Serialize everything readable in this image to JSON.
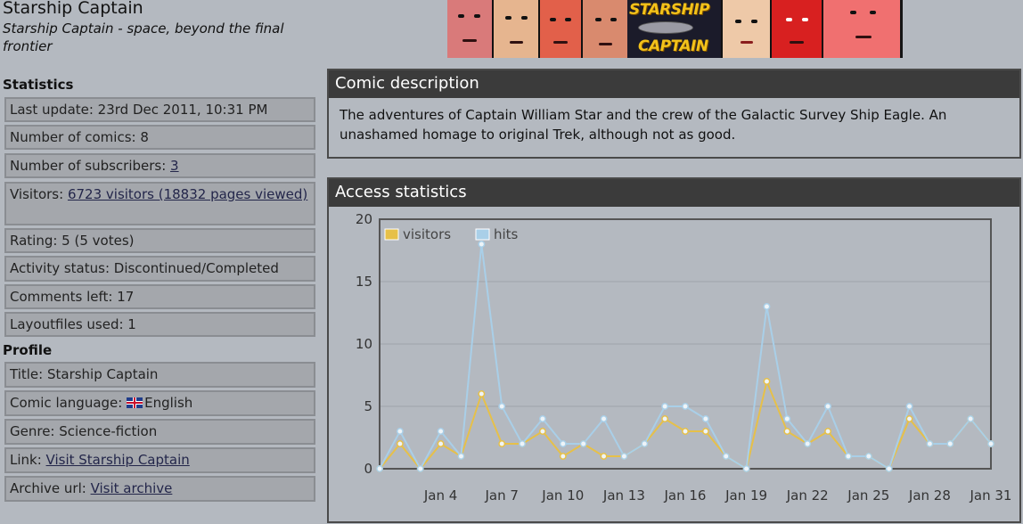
{
  "page": {
    "title": "Starship Captain",
    "subtitle": "Starship Captain - space, beyond the final frontier"
  },
  "banner": {
    "logo_line1": "STARSHIP",
    "logo_line2": "CAPTAIN"
  },
  "statistics": {
    "heading": "Statistics",
    "last_update": "Last update: 23rd Dec 2011, 10:31 PM",
    "number_of_comics": "Number of comics: 8",
    "subscribers_label": "Number of subscribers: ",
    "subscribers_link": "3",
    "visitors_label": "Visitors: ",
    "visitors_link": "6723 visitors (18832 pages viewed)",
    "rating": "Rating: 5 (5 votes)",
    "activity_status": "Activity status: Discontinued/Completed",
    "comments_left": "Comments left: 17",
    "layoutfiles_used": "Layoutfiles used: 1"
  },
  "profile": {
    "heading": "Profile",
    "title": "Title: Starship Captain",
    "language_label": "Comic language: ",
    "language_value": "English",
    "genre": "Genre: Science-fiction",
    "link_label": "Link: ",
    "link_text": "Visit Starship Captain",
    "archive_label": "Archive url: ",
    "archive_text": "Visit archive"
  },
  "description": {
    "heading": "Comic description",
    "text": "The adventures of Captain William Star and the crew of the Galactic Survey Ship Eagle. An unashamed homage to original Trek, although not as good."
  },
  "access_stats": {
    "heading": "Access statistics"
  },
  "chart_data": {
    "type": "line",
    "title": "",
    "xlabel": "",
    "ylabel": "",
    "ylim": [
      0,
      20
    ],
    "yticks": [
      0,
      5,
      10,
      15,
      20
    ],
    "x": [
      1,
      2,
      3,
      4,
      5,
      6,
      7,
      8,
      9,
      10,
      11,
      12,
      13,
      14,
      15,
      16,
      17,
      18,
      19,
      20,
      21,
      22,
      23,
      24,
      25,
      26,
      27,
      28,
      29,
      30,
      31
    ],
    "xtick_positions": [
      4,
      7,
      10,
      13,
      16,
      19,
      22,
      25,
      28,
      31
    ],
    "xtick_labels": [
      "Jan 4",
      "Jan 7",
      "Jan 10",
      "Jan 13",
      "Jan 16",
      "Jan 19",
      "Jan 22",
      "Jan 25",
      "Jan 28",
      "Jan 31"
    ],
    "grid": true,
    "legend": "top-left",
    "series": [
      {
        "name": "visitors",
        "color": "#e6c049",
        "values": [
          0,
          2,
          0,
          2,
          1,
          6,
          2,
          2,
          3,
          1,
          2,
          1,
          1,
          2,
          4,
          3,
          3,
          1,
          0,
          7,
          3,
          2,
          3,
          1,
          1,
          0,
          4,
          2,
          2,
          4,
          2
        ]
      },
      {
        "name": "hits",
        "color": "#a9cfe8",
        "values": [
          0,
          3,
          0,
          3,
          1,
          18,
          5,
          2,
          4,
          2,
          2,
          4,
          1,
          2,
          5,
          5,
          4,
          1,
          0,
          13,
          4,
          2,
          5,
          1,
          1,
          0,
          5,
          2,
          2,
          4,
          2
        ]
      }
    ]
  }
}
